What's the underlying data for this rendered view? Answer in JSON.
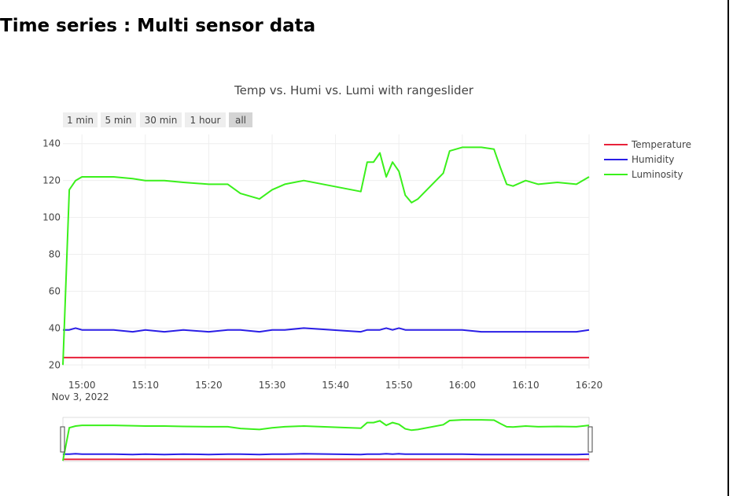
{
  "page": {
    "heading": "Time series : Multi sensor data"
  },
  "range_selector": {
    "buttons": [
      "1 min",
      "5 min",
      "30 min",
      "1 hour",
      "all"
    ],
    "active_index": 4
  },
  "colors": {
    "temperature": "#e8213a",
    "humidity": "#2a1ee6",
    "luminosity": "#3af01b",
    "grid": "#eeeeee",
    "button_bg": "#eeeeee",
    "button_active_bg": "#d4d4d4"
  },
  "chart_data": {
    "type": "line",
    "title": "Temp vs. Humi vs. Lumi with rangeslider",
    "x_axis": {
      "ticks": [
        "15:00",
        "15:10",
        "15:20",
        "15:30",
        "15:40",
        "15:50",
        "16:00",
        "16:10",
        "16:20"
      ],
      "date_label": "Nov 3, 2022",
      "range": [
        "2022-11-03 14:57",
        "2022-11-03 16:20"
      ]
    },
    "y_axis": {
      "ticks": [
        20,
        40,
        60,
        80,
        100,
        120,
        140
      ],
      "range": [
        18,
        145
      ]
    },
    "grid": true,
    "legend_position": "top-right",
    "rangeslider": true,
    "x": [
      "14:57",
      "14:58",
      "14:59",
      "15:00",
      "15:02",
      "15:05",
      "15:08",
      "15:10",
      "15:13",
      "15:16",
      "15:20",
      "15:23",
      "15:25",
      "15:28",
      "15:30",
      "15:32",
      "15:35",
      "15:44",
      "15:45",
      "15:46",
      "15:47",
      "15:48",
      "15:49",
      "15:50",
      "15:51",
      "15:52",
      "15:53",
      "15:57",
      "15:58",
      "16:00",
      "16:03",
      "16:05",
      "16:06",
      "16:07",
      "16:08",
      "16:10",
      "16:12",
      "16:15",
      "16:18",
      "16:20"
    ],
    "series": [
      {
        "name": "Temperature",
        "values": [
          24,
          24,
          24,
          24,
          24,
          24,
          24,
          24,
          24,
          24,
          24,
          24,
          24,
          24,
          24,
          24,
          24,
          24,
          24,
          24,
          24,
          24,
          24,
          24,
          24,
          24,
          24,
          24,
          24,
          24,
          24,
          24,
          24,
          24,
          24,
          24,
          24,
          24,
          24,
          24
        ]
      },
      {
        "name": "Humidity",
        "values": [
          39,
          39,
          40,
          39,
          39,
          39,
          38,
          39,
          38,
          39,
          38,
          39,
          39,
          38,
          39,
          39,
          40,
          38,
          39,
          39,
          39,
          40,
          39,
          40,
          39,
          39,
          39,
          39,
          39,
          39,
          38,
          38,
          38,
          38,
          38,
          38,
          38,
          38,
          38,
          39
        ]
      },
      {
        "name": "Luminosity",
        "values": [
          20,
          115,
          120,
          122,
          122,
          122,
          121,
          120,
          120,
          119,
          118,
          118,
          113,
          110,
          115,
          118,
          120,
          114,
          130,
          130,
          135,
          122,
          130,
          125,
          112,
          108,
          110,
          124,
          136,
          138,
          138,
          137,
          127,
          118,
          117,
          120,
          118,
          119,
          118,
          122
        ]
      }
    ]
  }
}
